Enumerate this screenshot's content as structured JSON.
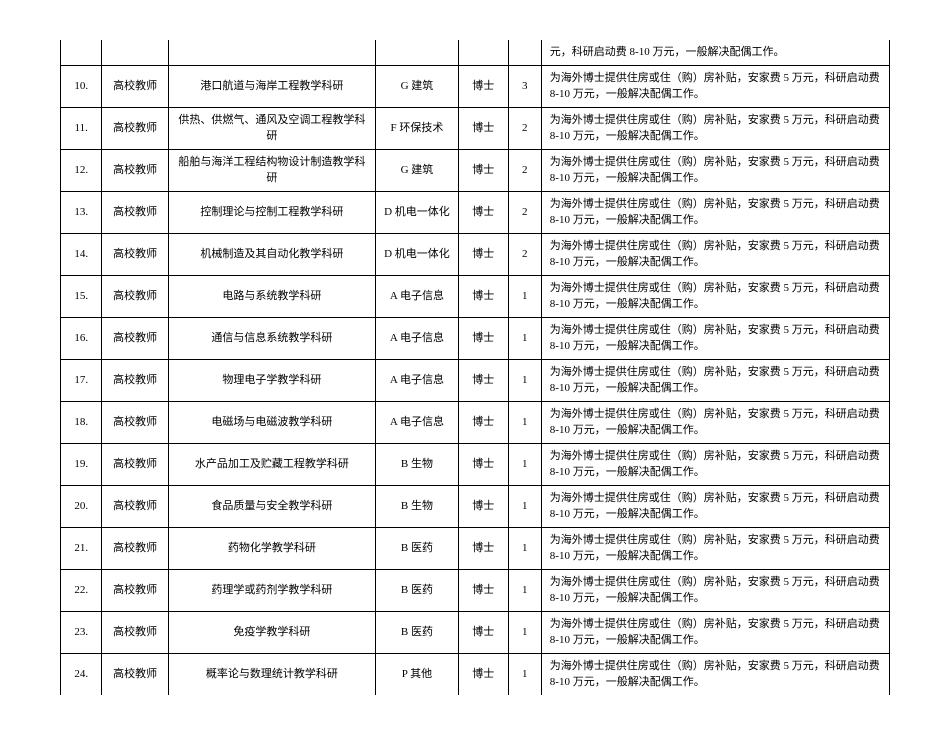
{
  "table": {
    "rows": [
      {
        "num": "",
        "type": "",
        "subject": "",
        "category": "",
        "degree": "",
        "count": "",
        "desc": "元，科研启动费 8-10 万元，一般解决配偶工作。",
        "partial": "top"
      },
      {
        "num": "10.",
        "type": "高校教师",
        "subject": "港口航道与海岸工程教学科研",
        "category": "G 建筑",
        "degree": "博士",
        "count": "3",
        "desc": "为海外博士提供住房或住（购）房补贴，安家费 5 万元，科研启动费 8-10 万元，一般解决配偶工作。"
      },
      {
        "num": "11.",
        "type": "高校教师",
        "subject": "供热、供燃气、通风及空调工程教学科研",
        "category": "F 环保技术",
        "degree": "博士",
        "count": "2",
        "desc": "为海外博士提供住房或住（购）房补贴，安家费 5 万元，科研启动费 8-10 万元，一般解决配偶工作。"
      },
      {
        "num": "12.",
        "type": "高校教师",
        "subject": "船舶与海洋工程结构物设计制造教学科研",
        "category": "G 建筑",
        "degree": "博士",
        "count": "2",
        "desc": "为海外博士提供住房或住（购）房补贴，安家费 5 万元，科研启动费 8-10 万元，一般解决配偶工作。"
      },
      {
        "num": "13.",
        "type": "高校教师",
        "subject": "控制理论与控制工程教学科研",
        "category": "D 机电一体化",
        "degree": "博士",
        "count": "2",
        "desc": "为海外博士提供住房或住（购）房补贴，安家费 5 万元，科研启动费 8-10 万元，一般解决配偶工作。"
      },
      {
        "num": "14.",
        "type": "高校教师",
        "subject": "机械制造及其自动化教学科研",
        "category": "D 机电一体化",
        "degree": "博士",
        "count": "2",
        "desc": "为海外博士提供住房或住（购）房补贴，安家费 5 万元，科研启动费 8-10 万元，一般解决配偶工作。"
      },
      {
        "num": "15.",
        "type": "高校教师",
        "subject": "电路与系统教学科研",
        "category": "A 电子信息",
        "degree": "博士",
        "count": "1",
        "desc": "为海外博士提供住房或住（购）房补贴，安家费 5 万元，科研启动费 8-10 万元，一般解决配偶工作。"
      },
      {
        "num": "16.",
        "type": "高校教师",
        "subject": "通信与信息系统教学科研",
        "category": "A 电子信息",
        "degree": "博士",
        "count": "1",
        "desc": "为海外博士提供住房或住（购）房补贴，安家费 5 万元，科研启动费 8-10 万元，一般解决配偶工作。"
      },
      {
        "num": "17.",
        "type": "高校教师",
        "subject": "物理电子学教学科研",
        "category": "A 电子信息",
        "degree": "博士",
        "count": "1",
        "desc": "为海外博士提供住房或住（购）房补贴，安家费 5 万元，科研启动费 8-10 万元，一般解决配偶工作。"
      },
      {
        "num": "18.",
        "type": "高校教师",
        "subject": "电磁场与电磁波教学科研",
        "category": "A 电子信息",
        "degree": "博士",
        "count": "1",
        "desc": "为海外博士提供住房或住（购）房补贴，安家费 5 万元，科研启动费 8-10 万元，一般解决配偶工作。"
      },
      {
        "num": "19.",
        "type": "高校教师",
        "subject": "水产品加工及贮藏工程教学科研",
        "category": "B 生物",
        "degree": "博士",
        "count": "1",
        "desc": "为海外博士提供住房或住（购）房补贴，安家费 5 万元，科研启动费 8-10 万元，一般解决配偶工作。"
      },
      {
        "num": "20.",
        "type": "高校教师",
        "subject": "食品质量与安全教学科研",
        "category": "B 生物",
        "degree": "博士",
        "count": "1",
        "desc": "为海外博士提供住房或住（购）房补贴，安家费 5 万元，科研启动费 8-10 万元，一般解决配偶工作。"
      },
      {
        "num": "21.",
        "type": "高校教师",
        "subject": "药物化学教学科研",
        "category": "B 医药",
        "degree": "博士",
        "count": "1",
        "desc": "为海外博士提供住房或住（购）房补贴，安家费 5 万元，科研启动费 8-10 万元，一般解决配偶工作。"
      },
      {
        "num": "22.",
        "type": "高校教师",
        "subject": "药理学或药剂学教学科研",
        "category": "B 医药",
        "degree": "博士",
        "count": "1",
        "desc": "为海外博士提供住房或住（购）房补贴，安家费 5 万元，科研启动费 8-10 万元，一般解决配偶工作。"
      },
      {
        "num": "23.",
        "type": "高校教师",
        "subject": "免疫学教学科研",
        "category": "B 医药",
        "degree": "博士",
        "count": "1",
        "desc": "为海外博士提供住房或住（购）房补贴，安家费 5 万元，科研启动费 8-10 万元，一般解决配偶工作。"
      },
      {
        "num": "24.",
        "type": "高校教师",
        "subject": "概率论与数理统计教学科研",
        "category": "P 其他",
        "degree": "博士",
        "count": "1",
        "desc": "为海外博士提供住房或住（购）房补贴，安家费 5 万元，科研启动费 8-10 万元，一般解决配偶工作。",
        "partial": "bottom"
      }
    ]
  }
}
